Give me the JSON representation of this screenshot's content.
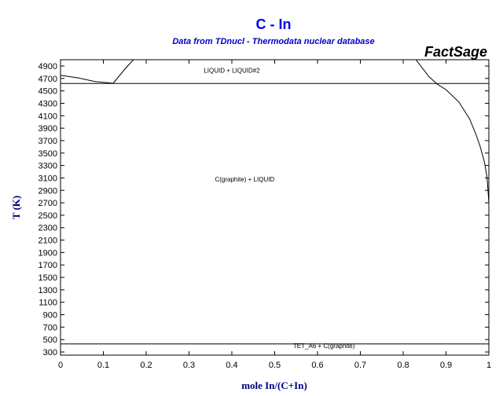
{
  "chart_data": {
    "type": "line",
    "title": "C - In",
    "subtitle": "Data from TDnucl - Thermodata nuclear database",
    "brand": "FactSage",
    "xlabel": "mole In/(C+In)",
    "ylabel": "T (K)",
    "xlim": [
      0,
      1
    ],
    "ylim": [
      300,
      5000
    ],
    "xticks": [
      0,
      0.1,
      0.2,
      0.3,
      0.4,
      0.5,
      0.6,
      0.7,
      0.8,
      0.9,
      1
    ],
    "xtick_labels": [
      "0",
      "0.1",
      "0.2",
      "0.3",
      "0.4",
      "0.5",
      "0.6",
      "0.7",
      "0.8",
      "0.9",
      "1"
    ],
    "yticks": [
      300,
      500,
      700,
      900,
      1100,
      1300,
      1500,
      1700,
      1900,
      2100,
      2300,
      2500,
      2700,
      2900,
      3100,
      3300,
      3500,
      3700,
      3900,
      4100,
      4300,
      4500,
      4700,
      4900
    ],
    "grid": false,
    "series": [
      {
        "values": [
          [
            0,
            4750
          ],
          [
            0.04,
            4710
          ],
          [
            0.08,
            4650
          ],
          [
            0.123,
            4622
          ]
        ]
      },
      {
        "values": [
          [
            0.123,
            4622
          ],
          [
            0.15,
            4850
          ],
          [
            0.17,
            5000
          ]
        ]
      },
      {
        "values": [
          [
            0.83,
            5000
          ],
          [
            0.86,
            4730
          ],
          [
            0.877,
            4625
          ]
        ]
      },
      {
        "values": [
          [
            0.877,
            4618
          ],
          [
            0.9,
            4520
          ],
          [
            0.93,
            4320
          ],
          [
            0.955,
            4050
          ],
          [
            0.97,
            3800
          ],
          [
            0.98,
            3600
          ],
          [
            0.99,
            3350
          ],
          [
            0.996,
            3100
          ],
          [
            1.0,
            2700
          ]
        ]
      },
      {
        "values": [
          [
            0,
            4618
          ],
          [
            1,
            4618
          ]
        ]
      },
      {
        "values": [
          [
            0,
            430
          ],
          [
            1,
            430
          ]
        ]
      }
    ],
    "annotations": [
      {
        "text": "LIQUID + LIQUID#2",
        "x": 0.4,
        "y": 4790
      },
      {
        "text": "C(graphite) + LIQUID",
        "x": 0.43,
        "y": 3040
      },
      {
        "text": "TET_A6 + C(graphite)",
        "x": 0.615,
        "y": 365
      }
    ]
  }
}
